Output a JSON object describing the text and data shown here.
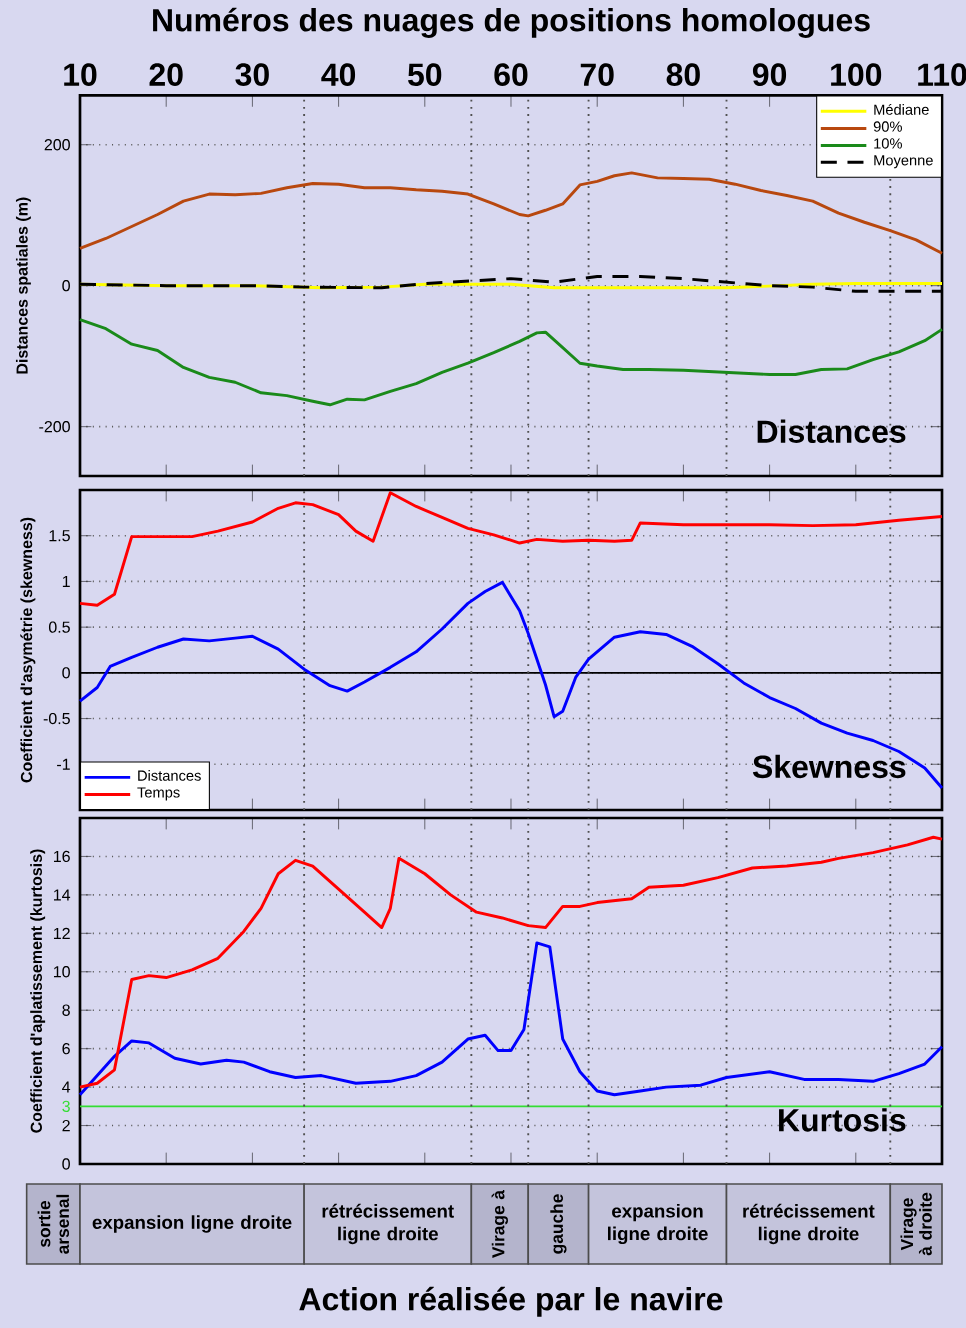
{
  "chart_data": [
    {
      "type": "line",
      "title": "Distances",
      "xlabel": "Numéros des nuages de positions homologues",
      "ylabel": "Distances spatiales (m)",
      "xlim": [
        10,
        110
      ],
      "xticks": [
        10,
        20,
        30,
        40,
        50,
        60,
        70,
        80,
        90,
        100,
        110
      ],
      "ylim": [
        -270,
        270
      ],
      "yticks": [
        -200,
        0,
        200
      ],
      "grid": "y",
      "legend": "top right",
      "series": [
        {
          "name": "Médiane",
          "color": "#ffff00",
          "x": [
            10,
            20,
            30,
            38,
            45,
            50,
            60,
            65,
            75,
            85,
            95,
            100,
            110
          ],
          "values": [
            2,
            0,
            0,
            -3,
            -2,
            2,
            2,
            -3,
            -3,
            -3,
            2,
            3,
            3
          ]
        },
        {
          "name": "90%",
          "color": "#b8480f",
          "x": [
            10,
            13,
            16,
            19,
            22,
            25,
            28,
            31,
            34,
            37,
            40,
            43,
            46,
            49,
            52,
            55,
            58,
            61,
            62,
            64,
            66,
            68,
            70,
            72,
            74,
            77,
            80,
            83,
            86,
            89,
            92,
            95,
            98,
            101,
            104,
            107,
            110
          ],
          "values": [
            53,
            67,
            84,
            101,
            120,
            130,
            129,
            131,
            139,
            145,
            144,
            139,
            139,
            136,
            134,
            130,
            116,
            101,
            99,
            107,
            116,
            143,
            148,
            156,
            160,
            153,
            152,
            151,
            144,
            135,
            128,
            120,
            103,
            90,
            78,
            65,
            46
          ]
        },
        {
          "name": "10%",
          "color": "#1a8a1a",
          "x": [
            10,
            13,
            16,
            19,
            22,
            25,
            28,
            31,
            34,
            37,
            39,
            41,
            43,
            46,
            49,
            52,
            55,
            58,
            61,
            63,
            64,
            66,
            68,
            70,
            73,
            76,
            80,
            85,
            90,
            93,
            96,
            99,
            102,
            105,
            108,
            110
          ],
          "values": [
            -48,
            -61,
            -83,
            -92,
            -116,
            -130,
            -137,
            -152,
            -156,
            -164,
            -169,
            -161,
            -162,
            -150,
            -139,
            -123,
            -110,
            -95,
            -79,
            -67,
            -66,
            -88,
            -110,
            -114,
            -119,
            -119,
            -120,
            -123,
            -126,
            -126,
            -119,
            -118,
            -105,
            -94,
            -78,
            -62
          ]
        },
        {
          "name": "Moyenne",
          "color": "#000000",
          "line_style": "dashed",
          "x": [
            10,
            20,
            30,
            36,
            45,
            50,
            60,
            65,
            70,
            75,
            80,
            85,
            90,
            95,
            100,
            110
          ],
          "values": [
            2,
            0,
            0,
            -2,
            -3,
            3,
            10,
            5,
            13,
            13,
            10,
            5,
            0,
            -2,
            -8,
            -8
          ]
        }
      ],
      "ref_lines": [
        {
          "axis": "x",
          "value": 36,
          "line_style": "dotted",
          "color": "#505050"
        },
        {
          "axis": "x",
          "value": 55.4,
          "line_style": "dotted",
          "color": "#505050"
        },
        {
          "axis": "x",
          "value": 62,
          "line_style": "dotted",
          "color": "#505050"
        },
        {
          "axis": "x",
          "value": 69,
          "line_style": "dotted",
          "color": "#505050"
        },
        {
          "axis": "x",
          "value": 85,
          "line_style": "dotted",
          "color": "#505050"
        },
        {
          "axis": "x",
          "value": 104,
          "line_style": "dotted",
          "color": "#505050"
        }
      ]
    },
    {
      "type": "line",
      "title": "Skewness",
      "ylabel": "Coefficient d'asymétrie (skewness)",
      "xlim": [
        10,
        110
      ],
      "xticks": [
        10,
        20,
        30,
        40,
        50,
        60,
        70,
        80,
        90,
        100,
        110
      ],
      "ylim": [
        -1.5,
        2
      ],
      "yticks": [
        -1,
        -0.5,
        0,
        0.5,
        1,
        1.5
      ],
      "tick_labels": "y",
      "grid": "y",
      "legend": "bottom left",
      "series": [
        {
          "name": "Distances",
          "color": "#0000ff",
          "x": [
            10,
            12,
            13.5,
            16,
            19,
            22,
            25,
            28,
            30,
            33,
            36,
            39,
            41,
            43,
            46,
            49,
            52,
            55,
            57,
            59,
            61,
            62,
            64,
            65,
            66,
            67.5,
            69,
            72,
            75,
            78,
            81,
            84,
            87,
            90,
            93,
            96,
            99,
            102,
            105,
            108,
            110
          ],
          "values": [
            -0.31,
            -0.16,
            0.07,
            0.17,
            0.28,
            0.37,
            0.35,
            0.38,
            0.4,
            0.26,
            0.04,
            -0.14,
            -0.2,
            -0.1,
            0.06,
            0.23,
            0.48,
            0.76,
            0.89,
            0.99,
            0.68,
            0.43,
            -0.13,
            -0.48,
            -0.42,
            -0.05,
            0.15,
            0.39,
            0.45,
            0.42,
            0.29,
            0.1,
            -0.11,
            -0.27,
            -0.39,
            -0.55,
            -0.66,
            -0.74,
            -0.86,
            -1.04,
            -1.26
          ]
        },
        {
          "name": "Temps",
          "color": "#ff0000",
          "x": [
            10,
            12,
            14,
            16,
            20,
            23,
            26,
            30,
            33,
            35,
            37,
            40,
            42,
            44,
            46,
            49,
            52,
            55,
            58,
            61,
            63,
            66,
            69,
            72,
            74,
            75,
            80,
            85,
            90,
            95,
            100,
            105,
            110
          ],
          "values": [
            0.76,
            0.74,
            0.86,
            1.49,
            1.49,
            1.49,
            1.55,
            1.65,
            1.8,
            1.86,
            1.84,
            1.73,
            1.55,
            1.44,
            1.97,
            1.82,
            1.7,
            1.58,
            1.51,
            1.42,
            1.46,
            1.44,
            1.45,
            1.44,
            1.45,
            1.64,
            1.62,
            1.62,
            1.62,
            1.61,
            1.62,
            1.67,
            1.71
          ]
        }
      ],
      "ref_lines": [
        {
          "axis": "y",
          "value": 0,
          "line_style": "solid",
          "color": "#000000"
        },
        {
          "axis": "x",
          "value": 36,
          "line_style": "dotted",
          "color": "#505050"
        },
        {
          "axis": "x",
          "value": 55.4,
          "line_style": "dotted",
          "color": "#505050"
        },
        {
          "axis": "x",
          "value": 62,
          "line_style": "dotted",
          "color": "#505050"
        },
        {
          "axis": "x",
          "value": 69,
          "line_style": "dotted",
          "color": "#505050"
        },
        {
          "axis": "x",
          "value": 85,
          "line_style": "dotted",
          "color": "#505050"
        },
        {
          "axis": "x",
          "value": 104,
          "line_style": "dotted",
          "color": "#505050"
        }
      ]
    },
    {
      "type": "line",
      "title": "Kurtosis",
      "ylabel": "Coefficient d'aplatissement (kurtosis)",
      "xlim": [
        10,
        110
      ],
      "xticks": [
        10,
        20,
        30,
        40,
        50,
        60,
        70,
        80,
        90,
        100,
        110
      ],
      "ylim": [
        0,
        18
      ],
      "yticks": [
        0,
        2,
        4,
        6,
        8,
        10,
        12,
        14,
        16
      ],
      "tick_labels": "y",
      "grid": "y",
      "series": [
        {
          "color": "#0000ff",
          "x": [
            10,
            12,
            14,
            16,
            18,
            21,
            24,
            27,
            29,
            32,
            35,
            38,
            42,
            46,
            49,
            52,
            55,
            57,
            58.5,
            60,
            61.5,
            63,
            64.5,
            66,
            68,
            70,
            72,
            75,
            78,
            82,
            85,
            90,
            94,
            98,
            102,
            105,
            108,
            110
          ],
          "values": [
            3.6,
            4.6,
            5.6,
            6.4,
            6.3,
            5.5,
            5.2,
            5.4,
            5.3,
            4.8,
            4.5,
            4.6,
            4.2,
            4.3,
            4.6,
            5.3,
            6.5,
            6.7,
            5.9,
            5.9,
            7.0,
            11.5,
            11.3,
            6.5,
            4.8,
            3.8,
            3.6,
            3.8,
            4.0,
            4.1,
            4.5,
            4.8,
            4.4,
            4.4,
            4.3,
            4.7,
            5.2,
            6.1
          ]
        },
        {
          "color": "#ff0000",
          "x": [
            10,
            12,
            14,
            16,
            18,
            20,
            23,
            26,
            29,
            31,
            33,
            35,
            37,
            40,
            43,
            45,
            46,
            47,
            50,
            53,
            56,
            59,
            62,
            64,
            66,
            68,
            70,
            74,
            76,
            80,
            84,
            88,
            92,
            96,
            98,
            102,
            106,
            109,
            110
          ],
          "values": [
            4.0,
            4.2,
            4.9,
            9.6,
            9.8,
            9.7,
            10.1,
            10.7,
            12.1,
            13.3,
            15.1,
            15.8,
            15.5,
            14.3,
            13.1,
            12.3,
            13.3,
            15.9,
            15.1,
            14.0,
            13.1,
            12.8,
            12.4,
            12.3,
            13.4,
            13.4,
            13.6,
            13.8,
            14.4,
            14.5,
            14.9,
            15.4,
            15.5,
            15.7,
            15.9,
            16.2,
            16.6,
            17.0,
            16.9
          ]
        }
      ],
      "ref_lines": [
        {
          "axis": "y",
          "value": 3,
          "label": "3",
          "line_style": "solid",
          "color": "#33dd33"
        },
        {
          "axis": "x",
          "value": 36,
          "line_style": "dotted",
          "color": "#505050"
        },
        {
          "axis": "x",
          "value": 55.4,
          "line_style": "dotted",
          "color": "#505050"
        },
        {
          "axis": "x",
          "value": 62,
          "line_style": "dotted",
          "color": "#505050"
        },
        {
          "axis": "x",
          "value": 69,
          "line_style": "dotted",
          "color": "#505050"
        },
        {
          "axis": "x",
          "value": 85,
          "line_style": "dotted",
          "color": "#505050"
        },
        {
          "axis": "x",
          "value": 104,
          "line_style": "dotted",
          "color": "#505050"
        }
      ]
    },
    {
      "type": "other",
      "xlabel": "Action réalisée par le navire",
      "annotations": [
        "sortie arsenal",
        "expansion ligne droite",
        "rétrécissement ligne droite",
        "Virage à",
        "gauche",
        "expansion ligne droite",
        "rétrécissement ligne droite",
        "Virage à droite"
      ]
    }
  ]
}
